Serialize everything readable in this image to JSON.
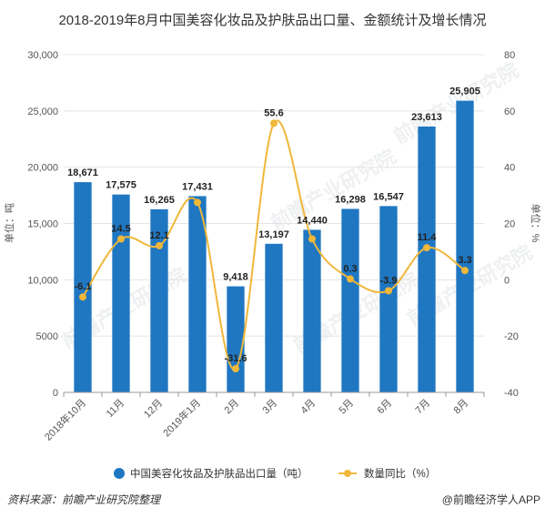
{
  "chart_data": {
    "type": "bar",
    "title": "2018-2019年8月中国美容化妆品及护肤品出口量、金额统计及增长情况",
    "categories": [
      "2018年10月",
      "11月",
      "12月",
      "2019年1月",
      "2月",
      "3月",
      "4月",
      "5月",
      "6月",
      "7月",
      "8月"
    ],
    "series": [
      {
        "name": "中国美容化妆品及护肤品出口量（吨）",
        "type": "bar",
        "axis": "left",
        "values": [
          18671,
          17575,
          16265,
          17431,
          9418,
          13197,
          14440,
          16298,
          16547,
          23613,
          25905
        ],
        "labels": [
          "18,671",
          "17,575",
          "16,265",
          "17,431",
          "9,418",
          "13,197",
          "14,440",
          "16,298",
          "16,547",
          "23,613",
          "25,905"
        ]
      },
      {
        "name": "数量同比（%）",
        "type": "line",
        "axis": "right",
        "values": [
          -6.1,
          14.5,
          12.1,
          27.5,
          -31.6,
          55.6,
          14.5,
          0.3,
          -3.9,
          11.4,
          3.3
        ],
        "labels": [
          "-6.1",
          "14.5",
          "12.1",
          "",
          "-31.6",
          "55.6",
          "",
          "0.3",
          "-3.9",
          "11.4",
          "3.3"
        ]
      }
    ],
    "ylabel": "单位：吨",
    "y2label": "单位：%",
    "ylim": [
      0,
      30000
    ],
    "y2lim": [
      -40,
      80
    ],
    "yticks": [
      "0",
      "5000",
      "10,000",
      "15,000",
      "20,000",
      "25,000",
      "30,000"
    ],
    "y2ticks": [
      "-40",
      "-20",
      "0",
      "20",
      "40",
      "60",
      "80"
    ],
    "legend_position": "bottom",
    "grid": true,
    "colors": {
      "bar": "#1f77c2",
      "line": "#f0b73a",
      "grid": "#e4e4e4"
    }
  },
  "watermark": "前瞻产业研究院",
  "footer": {
    "source": "资料来源：前瞻产业研究院整理",
    "brand": "@前瞻经济学人APP"
  }
}
